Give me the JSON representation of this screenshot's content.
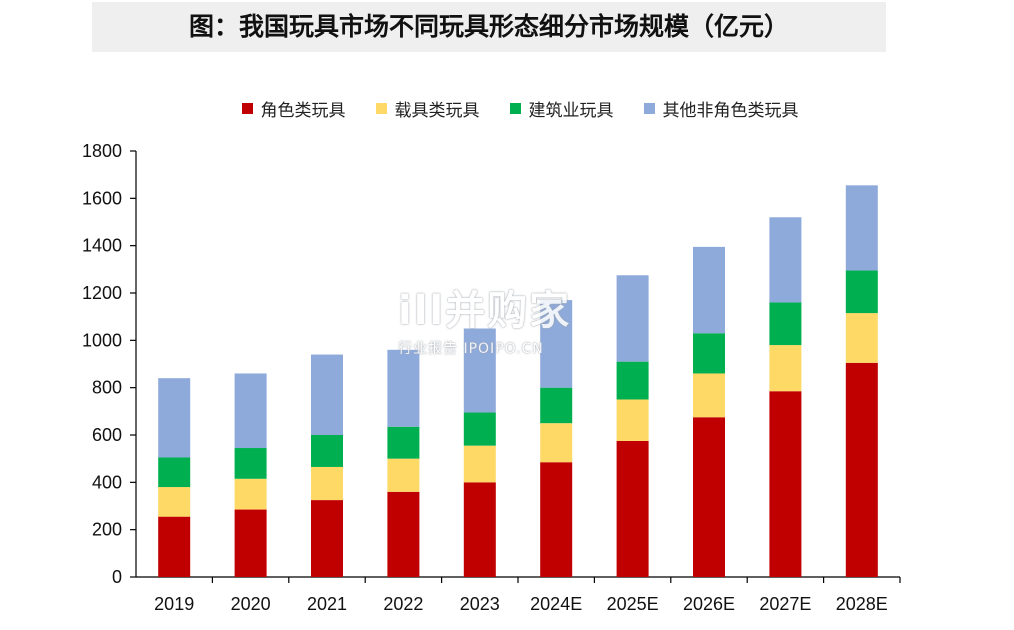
{
  "title": "图：我国玩具市场不同玩具形态细分市场规模（亿元）",
  "watermark": {
    "main": "ill并购家",
    "sub": "行业报告 IPOIPO.CN"
  },
  "chart_data": {
    "type": "bar",
    "stacked": true,
    "categories": [
      "2019",
      "2020",
      "2021",
      "2022",
      "2023",
      "2024E",
      "2025E",
      "2026E",
      "2027E",
      "2028E"
    ],
    "series": [
      {
        "name": "角色类玩具",
        "color": "#c00000",
        "values": [
          255,
          285,
          325,
          360,
          400,
          485,
          575,
          675,
          785,
          905
        ]
      },
      {
        "name": "载具类玩具",
        "color": "#ffd966",
        "values": [
          125,
          130,
          140,
          140,
          155,
          165,
          175,
          185,
          195,
          210
        ]
      },
      {
        "name": "建筑业玩具",
        "color": "#00b050",
        "values": [
          125,
          130,
          135,
          135,
          140,
          150,
          160,
          170,
          180,
          180
        ]
      },
      {
        "name": "其他非角色类玩具",
        "color": "#8eaadb",
        "values": [
          335,
          315,
          340,
          325,
          355,
          370,
          365,
          365,
          360,
          360
        ]
      }
    ],
    "xlabel": "",
    "ylabel": "",
    "ylim": [
      0,
      1800
    ],
    "yticks": [
      0,
      200,
      400,
      600,
      800,
      1000,
      1200,
      1400,
      1600,
      1800
    ],
    "grid": false,
    "legend_position": "top"
  }
}
